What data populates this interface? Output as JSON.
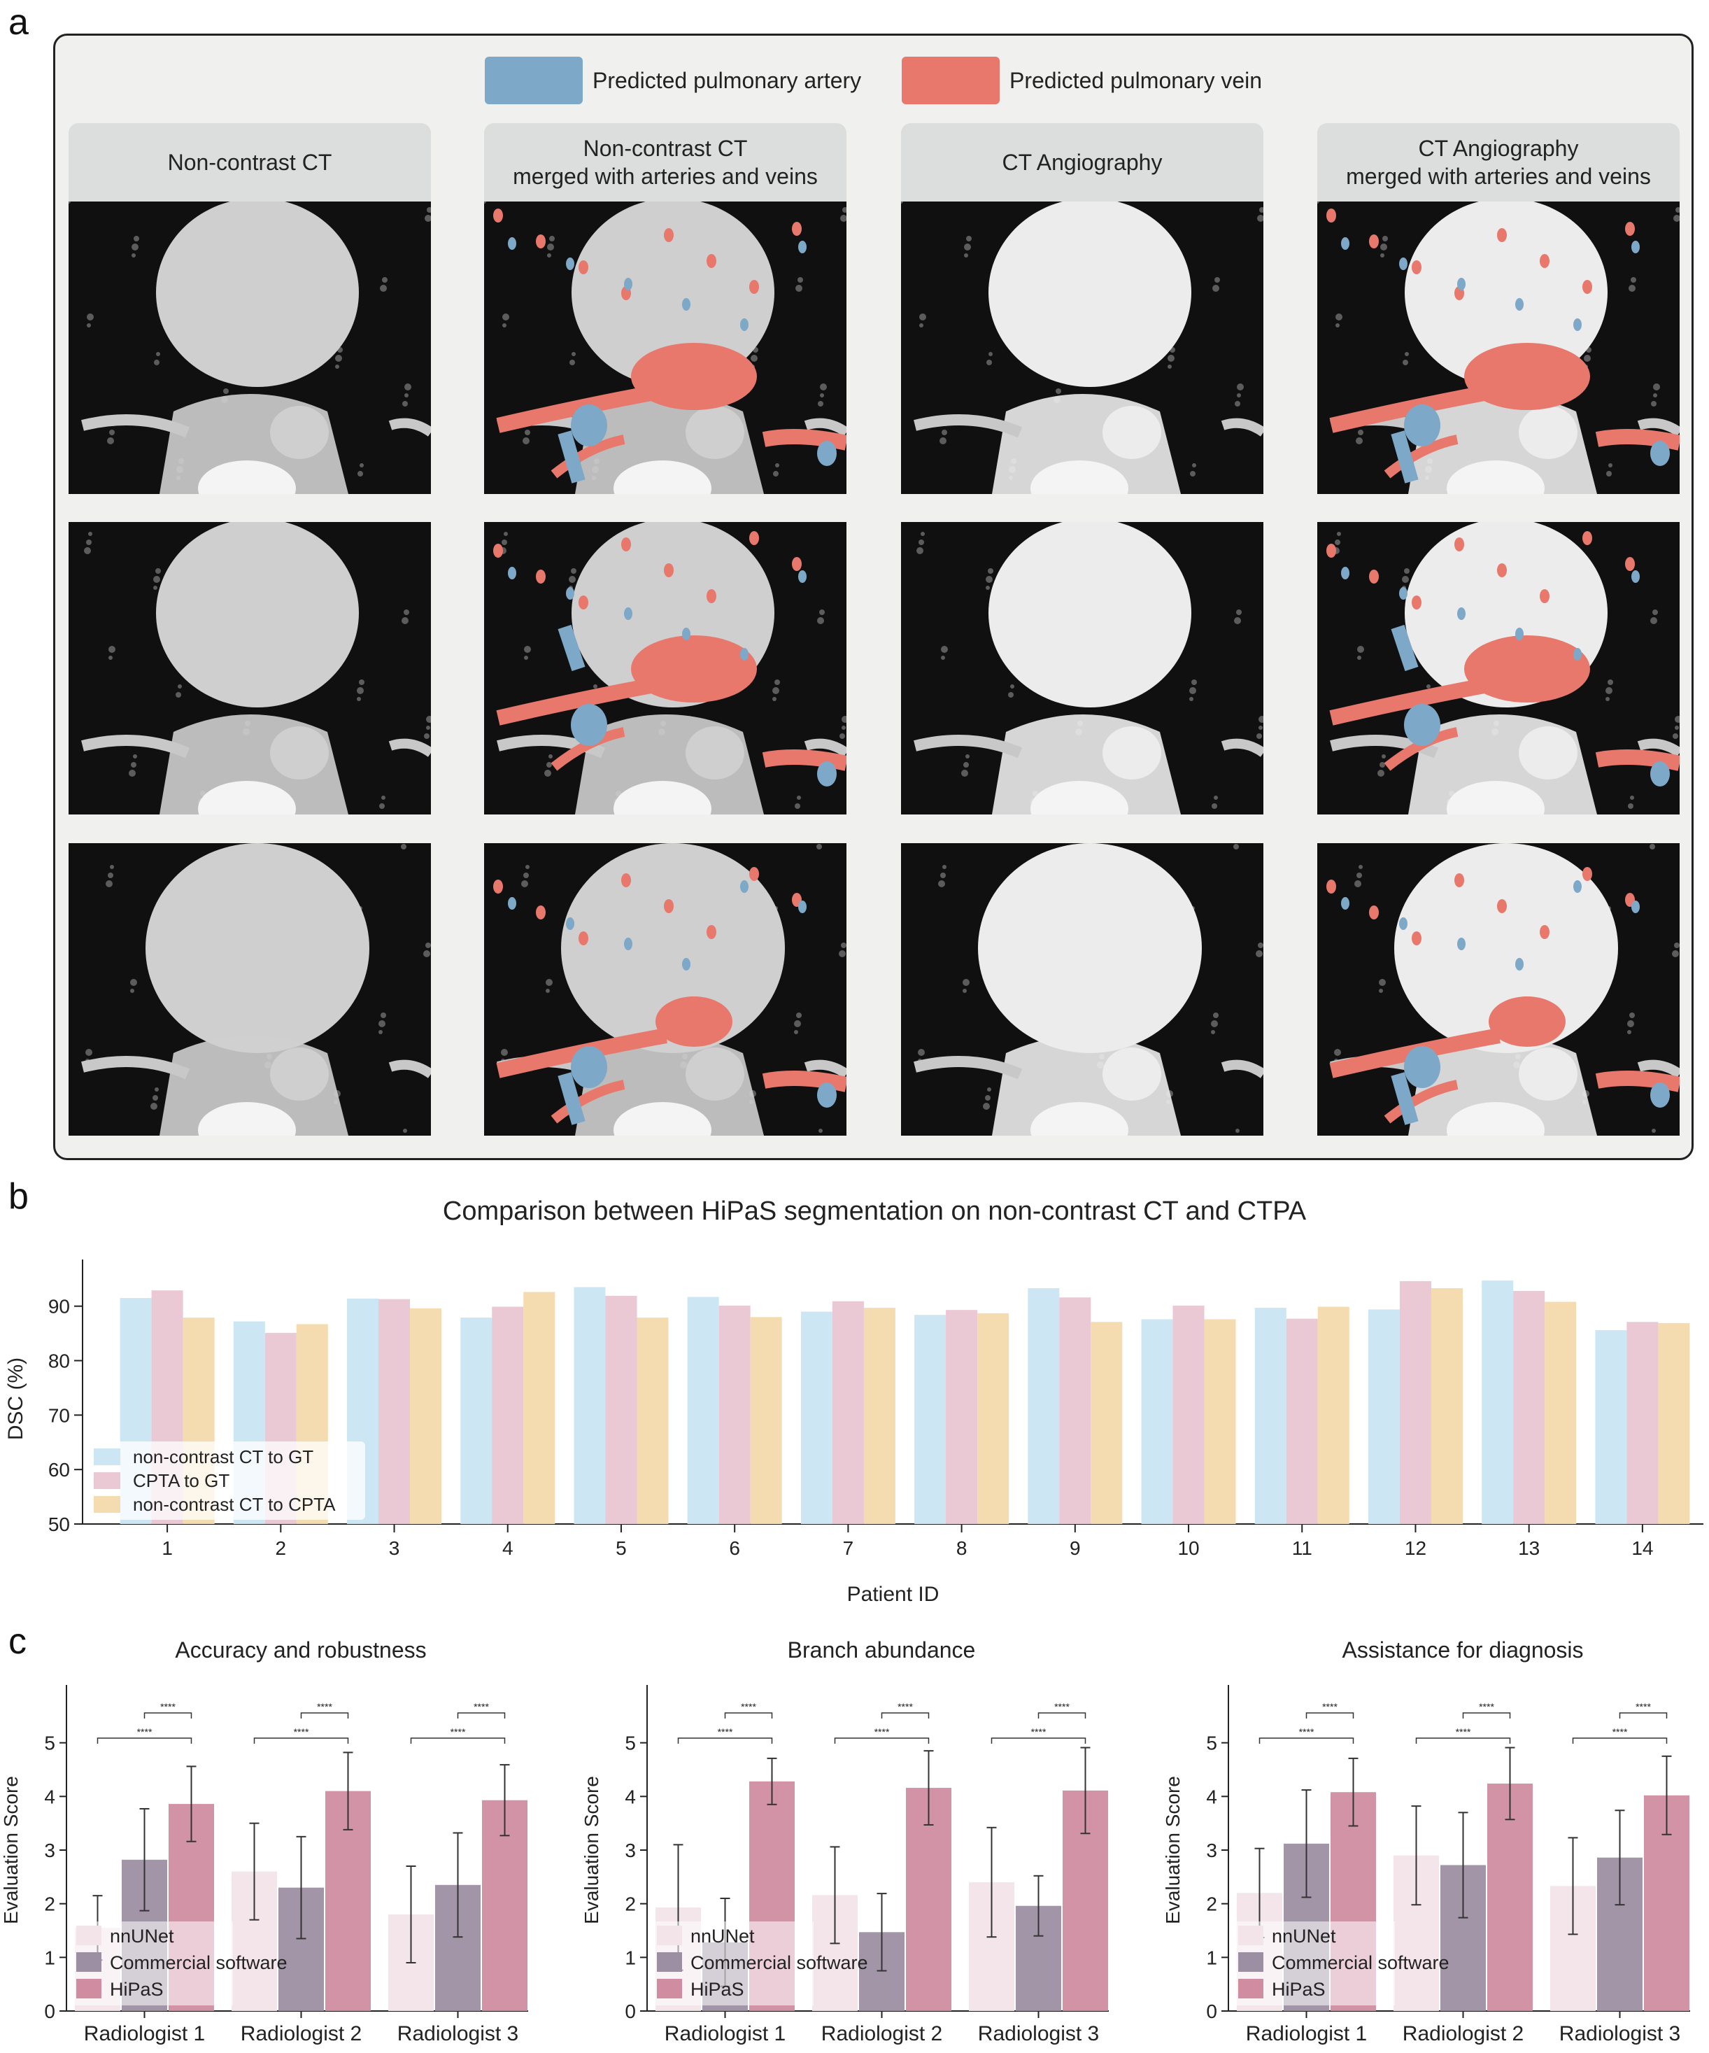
{
  "panel_a": {
    "letter": "a",
    "legend": [
      {
        "label": "Predicted pulmonary artery",
        "color": "#7ea8c8"
      },
      {
        "label": "Predicted pulmonary vein",
        "color": "#e8786b"
      }
    ],
    "columns": [
      "Non-contrast CT",
      "Non-contrast  CT\nmerged with arteries and veins",
      "CT Angiography",
      "CT Angiography\nmerged with arteries and veins"
    ],
    "colors": {
      "artery": "#7ea8c8",
      "vein": "#e8786b"
    }
  },
  "panel_b": {
    "letter": "b",
    "title": "Comparison between HiPaS segmentation on non-contrast CT and CTPA"
  },
  "panel_c": {
    "letter": "c"
  },
  "chart_data": [
    {
      "type": "bar",
      "title": "Comparison between HiPaS segmentation on non-contrast CT and CTPA",
      "xlabel": "Patient ID",
      "ylabel": "DSC (%)",
      "ylim": [
        50,
        96
      ],
      "yticks": [
        50,
        60,
        70,
        80,
        90
      ],
      "categories": [
        "1",
        "2",
        "3",
        "4",
        "5",
        "6",
        "7",
        "8",
        "9",
        "10",
        "11",
        "12",
        "13",
        "14"
      ],
      "legend_position": "lower-left",
      "series": [
        {
          "name": "non-contrast CT to GT",
          "color": "#cde6f4",
          "values": [
            91.5,
            87.2,
            91.4,
            87.9,
            93.5,
            91.7,
            89.0,
            88.4,
            93.3,
            87.6,
            89.7,
            89.4,
            94.7,
            85.6
          ]
        },
        {
          "name": "CPTA to GT",
          "color": "#eac8d4",
          "values": [
            92.9,
            85.1,
            91.3,
            89.9,
            91.9,
            90.1,
            90.9,
            89.3,
            91.6,
            90.1,
            87.7,
            94.6,
            92.8,
            87.1
          ]
        },
        {
          "name": "non-contrast CT to CPTA",
          "color": "#f5dcb0",
          "values": [
            87.9,
            86.7,
            89.6,
            92.6,
            87.9,
            88.0,
            89.7,
            88.7,
            87.1,
            87.6,
            89.9,
            93.3,
            90.8,
            86.9
          ]
        }
      ]
    },
    {
      "type": "bar",
      "title": "Accuracy and robustness",
      "ylabel": "Evaluation Score",
      "ylim": [
        0,
        6
      ],
      "yticks": [
        0,
        1,
        2,
        3,
        4,
        5
      ],
      "categories": [
        "Radiologist 1",
        "Radiologist 2",
        "Radiologist 3"
      ],
      "significance": "****",
      "series": [
        {
          "name": "nnUNet",
          "color": "#f2e4e8",
          "values": [
            1.55,
            2.6,
            1.8
          ],
          "err": [
            0.6,
            0.9,
            0.9
          ]
        },
        {
          "name": "Commercial software",
          "color": "#9d8fa3",
          "values": [
            2.82,
            2.3,
            2.35
          ],
          "err": [
            0.95,
            0.95,
            0.97
          ]
        },
        {
          "name": "HiPaS",
          "color": "#d08da2",
          "values": [
            3.86,
            4.1,
            3.93
          ],
          "err": [
            0.7,
            0.72,
            0.66
          ]
        }
      ]
    },
    {
      "type": "bar",
      "title": "Branch abundance",
      "ylabel": "Evaluation Score",
      "ylim": [
        0,
        6
      ],
      "yticks": [
        0,
        1,
        2,
        3,
        4,
        5
      ],
      "categories": [
        "Radiologist 1",
        "Radiologist 2",
        "Radiologist 3"
      ],
      "significance": "****",
      "series": [
        {
          "name": "nnUNet",
          "color": "#f2e4e8",
          "values": [
            1.93,
            2.16,
            2.4
          ],
          "err": [
            1.17,
            0.9,
            1.02
          ]
        },
        {
          "name": "Commercial software",
          "color": "#9d8fa3",
          "values": [
            1.28,
            1.47,
            1.96
          ],
          "err": [
            0.82,
            0.72,
            0.56
          ]
        },
        {
          "name": "HiPaS",
          "color": "#d08da2",
          "values": [
            4.28,
            4.16,
            4.11
          ],
          "err": [
            0.43,
            0.69,
            0.8
          ]
        }
      ]
    },
    {
      "type": "bar",
      "title": "Assistance for diagnosis",
      "ylabel": "Evaluation Score",
      "ylim": [
        0,
        6
      ],
      "yticks": [
        0,
        1,
        2,
        3,
        4,
        5
      ],
      "categories": [
        "Radiologist 1",
        "Radiologist 2",
        "Radiologist 3"
      ],
      "significance": "****",
      "series": [
        {
          "name": "nnUNet",
          "color": "#f2e4e8",
          "values": [
            2.2,
            2.9,
            2.33
          ],
          "err": [
            0.83,
            0.92,
            0.9
          ]
        },
        {
          "name": "Commercial software",
          "color": "#9d8fa3",
          "values": [
            3.12,
            2.72,
            2.86
          ],
          "err": [
            1.0,
            0.98,
            0.88
          ]
        },
        {
          "name": "HiPaS",
          "color": "#d08da2",
          "values": [
            4.08,
            4.24,
            4.02
          ],
          "err": [
            0.63,
            0.67,
            0.73
          ]
        }
      ]
    }
  ]
}
